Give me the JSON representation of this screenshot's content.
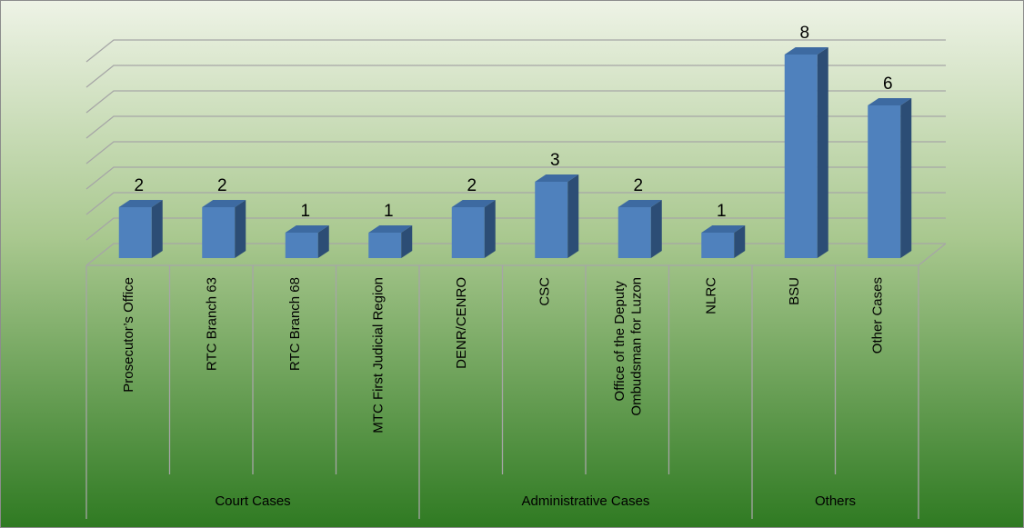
{
  "chart_data": {
    "type": "bar3d",
    "groups": [
      {
        "label": "Court Cases",
        "categories": [
          "Prosecutor’s Office",
          "RTC Branch 63",
          "RTC Branch 68",
          "MTC First Judicial Region"
        ]
      },
      {
        "label": "Administrative Cases",
        "categories": [
          "DENR/CENRO",
          "CSC",
          "Office of the Deputy Ombudsman for Luzon",
          "NLRC"
        ]
      },
      {
        "label": "Others",
        "categories": [
          "BSU",
          "Other Cases"
        ]
      }
    ],
    "values": [
      2,
      2,
      1,
      1,
      2,
      3,
      2,
      1,
      8,
      6
    ],
    "color": "#4f81bd",
    "ylim": [
      0,
      8
    ],
    "yticks": [
      0,
      1,
      2,
      3,
      4,
      5,
      6,
      7,
      8
    ],
    "grid": true
  }
}
